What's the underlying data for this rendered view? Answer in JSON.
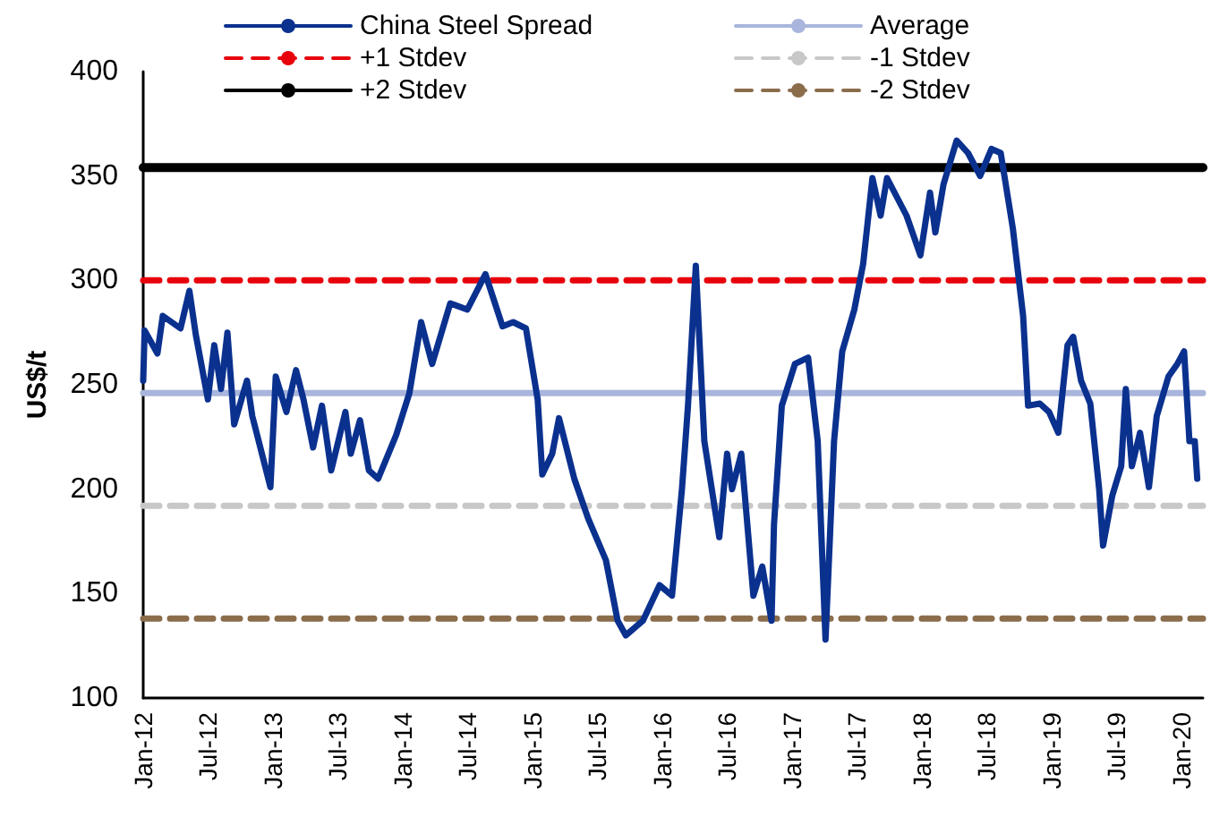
{
  "chart_data": {
    "type": "line",
    "ylabel": "US$/t",
    "ylim": [
      100,
      400
    ],
    "yticks": [
      100,
      150,
      200,
      250,
      300,
      350,
      400
    ],
    "xlim": [
      "2012-01-01",
      "2020-03-01"
    ],
    "xticks": [
      {
        "value": "2012-01-01",
        "label": "Jan-12"
      },
      {
        "value": "2012-07-01",
        "label": "Jul-12"
      },
      {
        "value": "2013-01-01",
        "label": "Jan-13"
      },
      {
        "value": "2013-07-01",
        "label": "Jul-13"
      },
      {
        "value": "2014-01-01",
        "label": "Jan-14"
      },
      {
        "value": "2014-07-01",
        "label": "Jul-14"
      },
      {
        "value": "2015-01-01",
        "label": "Jan-15"
      },
      {
        "value": "2015-07-01",
        "label": "Jul-15"
      },
      {
        "value": "2016-01-01",
        "label": "Jan-16"
      },
      {
        "value": "2016-07-01",
        "label": "Jul-16"
      },
      {
        "value": "2017-01-01",
        "label": "Jan-17"
      },
      {
        "value": "2017-07-01",
        "label": "Jul-17"
      },
      {
        "value": "2018-01-01",
        "label": "Jan-18"
      },
      {
        "value": "2018-07-01",
        "label": "Jul-18"
      },
      {
        "value": "2019-01-01",
        "label": "Jan-19"
      },
      {
        "value": "2019-07-01",
        "label": "Jul-19"
      },
      {
        "value": "2020-01-01",
        "label": "Jan-20"
      }
    ],
    "grid": false,
    "legend": "top",
    "marker": "none",
    "x": [
      "2012-01-01",
      "2012-01-05",
      "2012-02-10",
      "2012-02-25",
      "2012-04-15",
      "2012-05-10",
      "2012-05-28",
      "2012-07-01",
      "2012-07-19",
      "2012-08-07",
      "2012-08-25",
      "2012-09-13",
      "2012-10-19",
      "2012-11-03",
      "2012-12-24",
      "2013-01-08",
      "2013-02-07",
      "2013-03-06",
      "2013-03-27",
      "2013-04-23",
      "2013-05-18",
      "2013-06-13",
      "2013-07-23",
      "2013-08-07",
      "2013-09-02",
      "2013-09-27",
      "2013-10-23",
      "2013-12-13",
      "2014-01-19",
      "2014-02-21",
      "2014-03-24",
      "2014-05-14",
      "2014-07-01",
      "2014-08-21",
      "2014-10-08",
      "2014-11-07",
      "2014-12-13",
      "2015-01-15",
      "2015-01-28",
      "2015-02-25",
      "2015-03-16",
      "2015-04-28",
      "2015-06-06",
      "2015-07-26",
      "2015-08-28",
      "2015-09-20",
      "2015-11-07",
      "2015-12-24",
      "2016-01-28",
      "2016-02-25",
      "2016-03-13",
      "2016-04-04",
      "2016-04-28",
      "2016-06-09",
      "2016-07-01",
      "2016-07-15",
      "2016-08-10",
      "2016-09-13",
      "2016-10-08",
      "2016-11-03",
      "2016-11-10",
      "2016-12-02",
      "2017-01-08",
      "2017-02-14",
      "2017-03-13",
      "2017-04-04",
      "2017-04-28",
      "2017-05-21",
      "2017-06-24",
      "2017-07-19",
      "2017-08-14",
      "2017-09-06",
      "2017-09-24",
      "2017-11-18",
      "2017-12-27",
      "2018-01-23",
      "2018-02-07",
      "2018-03-02",
      "2018-04-08",
      "2018-05-10",
      "2018-06-13",
      "2018-07-15",
      "2018-08-10",
      "2018-09-13",
      "2018-10-12",
      "2018-10-26",
      "2018-11-28",
      "2018-12-24",
      "2019-01-19",
      "2019-02-14",
      "2019-03-02",
      "2019-03-24",
      "2019-04-19",
      "2019-05-14",
      "2019-05-25",
      "2019-06-20",
      "2019-07-15",
      "2019-07-28",
      "2019-08-14",
      "2019-09-06",
      "2019-10-01",
      "2019-10-23",
      "2019-11-25",
      "2019-12-20",
      "2020-01-08",
      "2020-01-23",
      "2020-02-07",
      "2020-02-14"
    ],
    "series": [
      {
        "name": "China Steel Spread",
        "color": "#0b318f",
        "line_style": "solid",
        "values": [
          252,
          276,
          265,
          283,
          277,
          295,
          274,
          243,
          269,
          248,
          275,
          231,
          252,
          235,
          201,
          254,
          237,
          257,
          243,
          220,
          240,
          209,
          237,
          217,
          233,
          209,
          205,
          226,
          246,
          280,
          260,
          289,
          286,
          303,
          278,
          280,
          277,
          243,
          207,
          217,
          234,
          205,
          186,
          166,
          137,
          130,
          137,
          154,
          149,
          200,
          240,
          307,
          223,
          177,
          217,
          200,
          217,
          149,
          163,
          137,
          183,
          240,
          260,
          263,
          223,
          128,
          223,
          266,
          286,
          308,
          349,
          331,
          349,
          331,
          312,
          342,
          323,
          346,
          367,
          361,
          350,
          363,
          361,
          325,
          283,
          240,
          241,
          237,
          227,
          269,
          273,
          252,
          241,
          200,
          173,
          197,
          211,
          248,
          211,
          227,
          201,
          235,
          254,
          260,
          266,
          223,
          223,
          205
        ]
      }
    ],
    "ref_lines": [
      {
        "axis": "y",
        "value": 300,
        "label": "+1 Stdev",
        "color": "#e8000b",
        "line_style": "dashed"
      },
      {
        "axis": "y",
        "value": 354,
        "label": "+2 Stdev",
        "color": "#000000",
        "line_style": "solid"
      },
      {
        "axis": "y",
        "value": 246,
        "label": "Average",
        "color": "#a9b5dc",
        "line_style": "solid"
      },
      {
        "axis": "y",
        "value": 192,
        "label": "-1 Stdev",
        "color": "#c8c8c8",
        "line_style": "dashed"
      },
      {
        "axis": "y",
        "value": 138,
        "label": "-2 Stdev",
        "color": "#8b6d4c",
        "line_style": "dashed"
      }
    ]
  }
}
